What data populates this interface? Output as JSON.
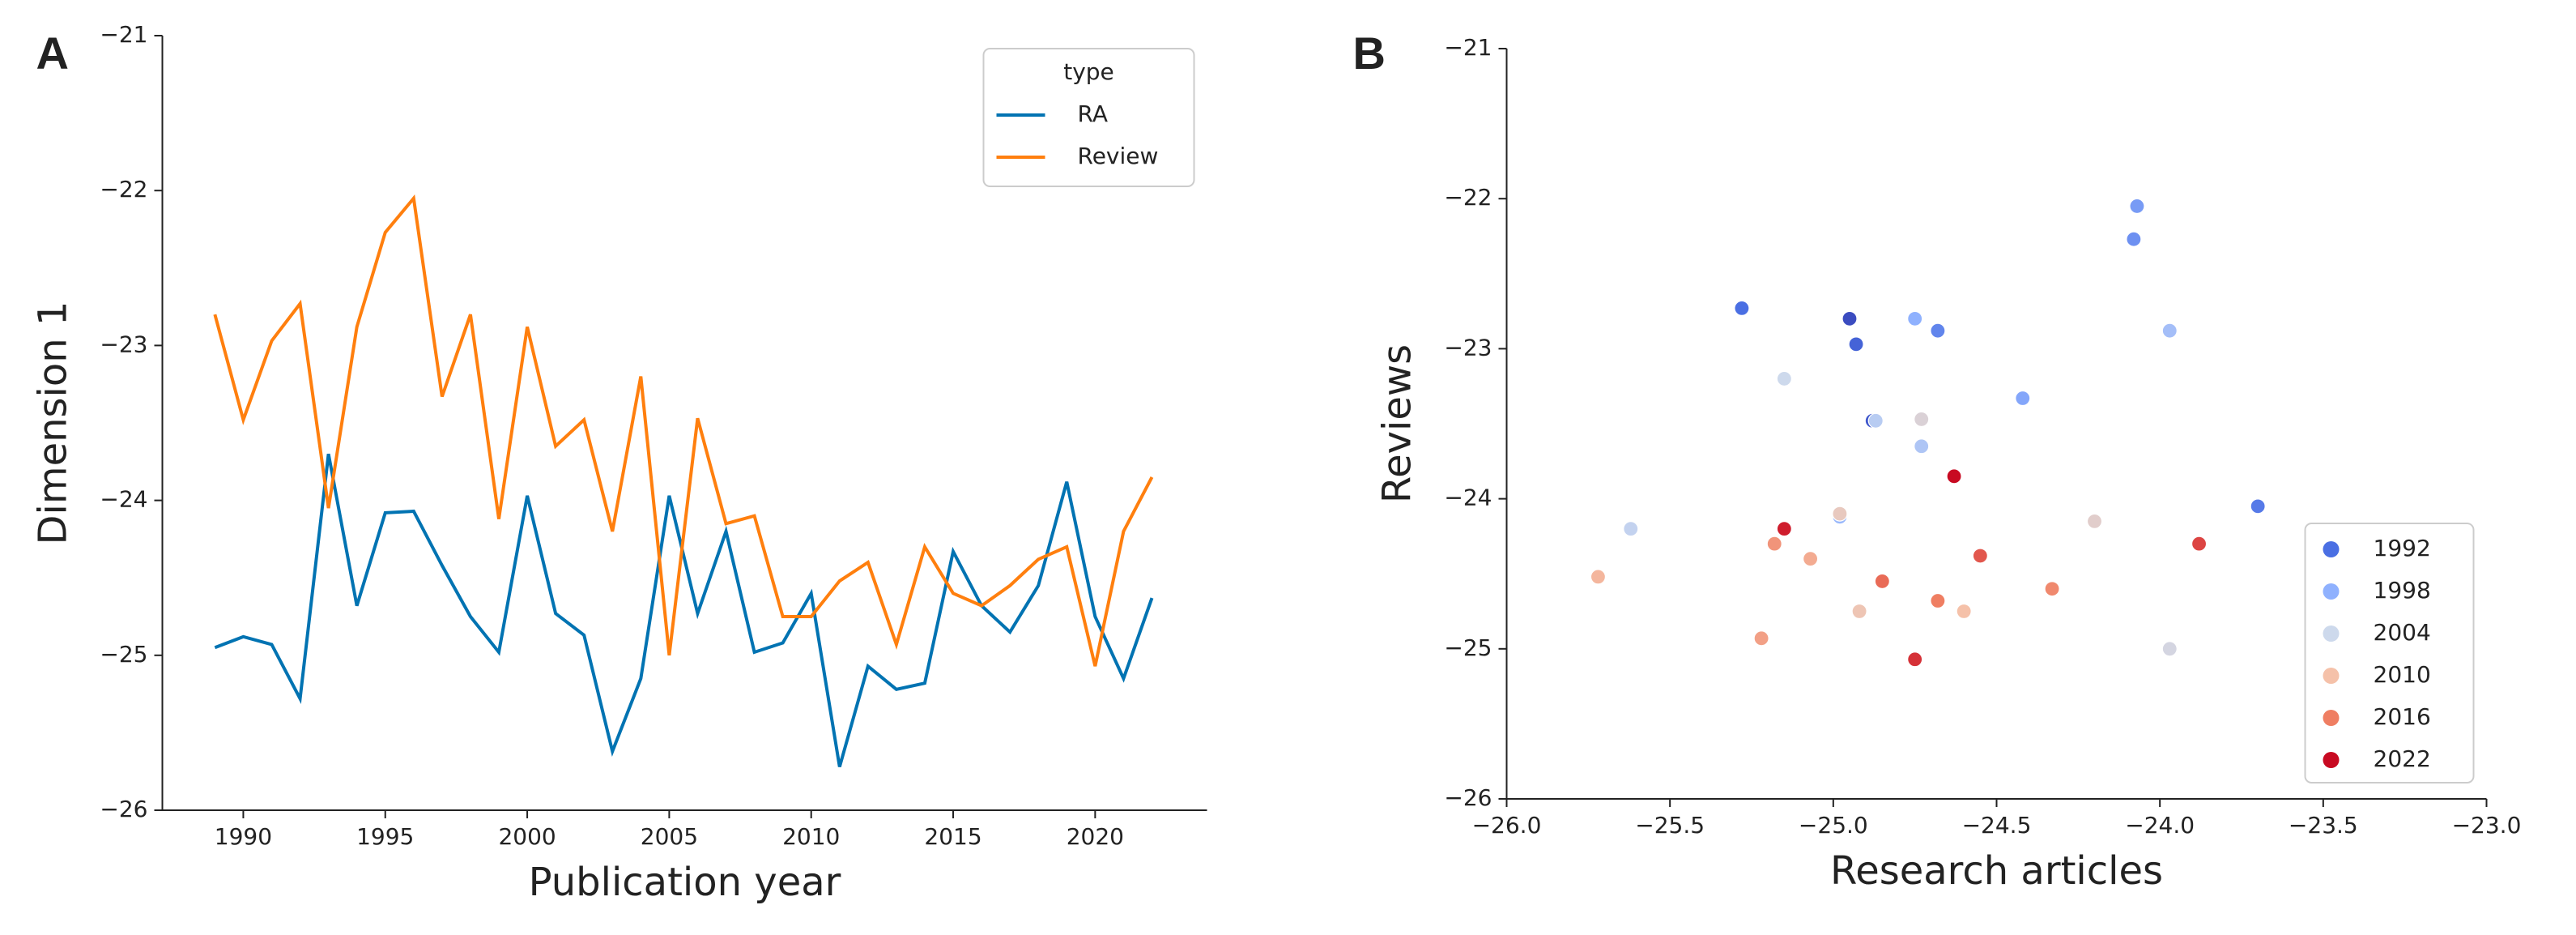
{
  "chart_data": [
    {
      "type": "line",
      "panel_label": "A",
      "xlabel": "Publication year",
      "ylabel": "Dimension 1",
      "x": [
        1989,
        1990,
        1991,
        1992,
        1993,
        1994,
        1995,
        1996,
        1997,
        1998,
        1999,
        2000,
        2001,
        2002,
        2003,
        2004,
        2005,
        2006,
        2007,
        2008,
        2009,
        2010,
        2011,
        2012,
        2013,
        2014,
        2015,
        2016,
        2017,
        2018,
        2019,
        2020,
        2021,
        2022
      ],
      "series": [
        {
          "name": "RA",
          "color": "#0173b2",
          "values": [
            -24.95,
            -24.88,
            -24.93,
            -25.28,
            -23.7,
            -24.68,
            -24.08,
            -24.07,
            -24.42,
            -24.75,
            -24.98,
            -23.97,
            -24.73,
            -24.87,
            -25.62,
            -25.15,
            -23.97,
            -24.73,
            -24.2,
            -24.98,
            -24.92,
            -24.6,
            -25.72,
            -25.07,
            -25.22,
            -25.18,
            -24.33,
            -24.68,
            -24.85,
            -24.55,
            -23.88,
            -24.75,
            -25.15,
            -24.63
          ]
        },
        {
          "name": "Review",
          "color": "#ff7f0e",
          "values": [
            -22.8,
            -23.48,
            -22.97,
            -22.73,
            -24.05,
            -22.88,
            -22.27,
            -22.05,
            -23.33,
            -22.8,
            -24.12,
            -22.88,
            -23.65,
            -23.48,
            -24.2,
            -23.2,
            -25.0,
            -23.47,
            -24.15,
            -24.1,
            -24.75,
            -24.75,
            -24.52,
            -24.4,
            -24.93,
            -24.3,
            -24.6,
            -24.68,
            -24.55,
            -24.38,
            -24.3,
            -25.07,
            -24.2,
            -23.85
          ]
        }
      ],
      "legend_title": "type",
      "legend_position": "upper right",
      "xlim": [
        1987.15,
        2023.94
      ],
      "xticks": [
        1990,
        1995,
        2000,
        2005,
        2010,
        2015,
        2020
      ],
      "ylim": [
        -26,
        -21
      ],
      "yticks": [
        {
          "value": -26,
          "label": "−26"
        },
        {
          "value": -25,
          "label": "−25"
        },
        {
          "value": -24,
          "label": "−24"
        },
        {
          "value": -23,
          "label": "−23"
        },
        {
          "value": -22,
          "label": "−22"
        },
        {
          "value": -21,
          "label": "−21"
        }
      ]
    },
    {
      "type": "scatter",
      "panel_label": "B",
      "xlabel": "Research articles",
      "ylabel": "Reviews",
      "x": [
        -24.95,
        -24.88,
        -24.93,
        -25.28,
        -23.7,
        -24.68,
        -24.08,
        -24.07,
        -24.42,
        -24.75,
        -24.98,
        -23.97,
        -24.73,
        -24.87,
        -25.62,
        -25.15,
        -23.97,
        -24.73,
        -24.2,
        -24.98,
        -24.92,
        -24.6,
        -25.72,
        -25.07,
        -25.22,
        -25.18,
        -24.33,
        -24.68,
        -24.85,
        -24.55,
        -23.88,
        -24.75,
        -25.15,
        -24.63
      ],
      "y": [
        -22.8,
        -23.48,
        -22.97,
        -22.73,
        -24.05,
        -22.88,
        -22.27,
        -22.05,
        -23.33,
        -22.8,
        -24.12,
        -22.88,
        -23.65,
        -23.48,
        -24.2,
        -23.2,
        -25.0,
        -23.47,
        -24.15,
        -24.1,
        -24.75,
        -24.75,
        -24.52,
        -24.4,
        -24.93,
        -24.3,
        -24.6,
        -24.68,
        -24.55,
        -24.38,
        -24.3,
        -25.07,
        -24.2,
        -23.85
      ],
      "hue": [
        1989,
        1990,
        1991,
        1992,
        1993,
        1994,
        1995,
        1996,
        1997,
        1998,
        1999,
        2000,
        2001,
        2002,
        2003,
        2004,
        2005,
        2006,
        2007,
        2008,
        2009,
        2010,
        2011,
        2012,
        2013,
        2014,
        2015,
        2016,
        2017,
        2018,
        2019,
        2020,
        2021,
        2022
      ],
      "hue_legend": [
        {
          "value": 1992,
          "color": "#4a6fe3"
        },
        {
          "value": 1998,
          "color": "#8fb1fe"
        },
        {
          "value": 2004,
          "color": "#cdd9ec"
        },
        {
          "value": 2010,
          "color": "#f5c1a9"
        },
        {
          "value": 2016,
          "color": "#ef7e62"
        },
        {
          "value": 2022,
          "color": "#c80a22"
        }
      ],
      "legend_position": "lower right",
      "xlim": [
        -26,
        -23
      ],
      "xticks": [
        {
          "value": -26,
          "label": "−26.0"
        },
        {
          "value": -25.5,
          "label": "−25.5"
        },
        {
          "value": -25,
          "label": "−25.0"
        },
        {
          "value": -24.5,
          "label": "−24.5"
        },
        {
          "value": -24,
          "label": "−24.0"
        },
        {
          "value": -23.5,
          "label": "−23.5"
        },
        {
          "value": -23,
          "label": "−23.0"
        }
      ],
      "ylim": [
        -26,
        -21
      ],
      "yticks": [
        {
          "value": -26,
          "label": "−26"
        },
        {
          "value": -25,
          "label": "−25"
        },
        {
          "value": -24,
          "label": "−24"
        },
        {
          "value": -23,
          "label": "−23"
        },
        {
          "value": -22,
          "label": "−22"
        },
        {
          "value": -21,
          "label": "−21"
        }
      ]
    }
  ]
}
